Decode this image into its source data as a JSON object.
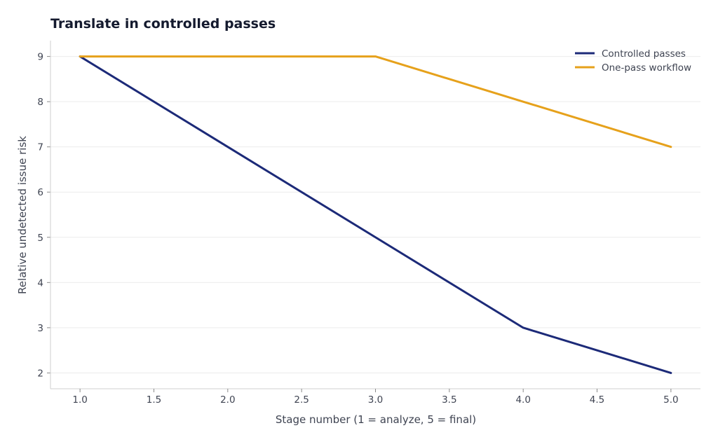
{
  "chart_data": {
    "type": "line",
    "title": "Translate in controlled passes",
    "xlabel": "Stage number (1 = analyze, 5 = final)",
    "ylabel": "Relative undetected issue risk",
    "x": [
      1,
      2,
      3,
      4,
      5
    ],
    "xlim": [
      0.8,
      5.2
    ],
    "ylim": [
      1.65,
      9.35
    ],
    "xticks": [
      1.0,
      1.5,
      2.0,
      2.5,
      3.0,
      3.5,
      4.0,
      4.5,
      5.0
    ],
    "xtick_labels": [
      "1.0",
      "1.5",
      "2.0",
      "2.5",
      "3.0",
      "3.5",
      "4.0",
      "4.5",
      "5.0"
    ],
    "yticks": [
      2,
      3,
      4,
      5,
      6,
      7,
      8,
      9
    ],
    "ytick_labels": [
      "2",
      "3",
      "4",
      "5",
      "6",
      "7",
      "8",
      "9"
    ],
    "grid": "horizontal",
    "legend_position": "top-right",
    "series": [
      {
        "name": "Controlled passes",
        "values": [
          9,
          7,
          5,
          3,
          2
        ],
        "color": "#1c2a78"
      },
      {
        "name": "One-pass workflow",
        "values": [
          9,
          9,
          9,
          8,
          7
        ],
        "color": "#e6a11b"
      }
    ]
  }
}
